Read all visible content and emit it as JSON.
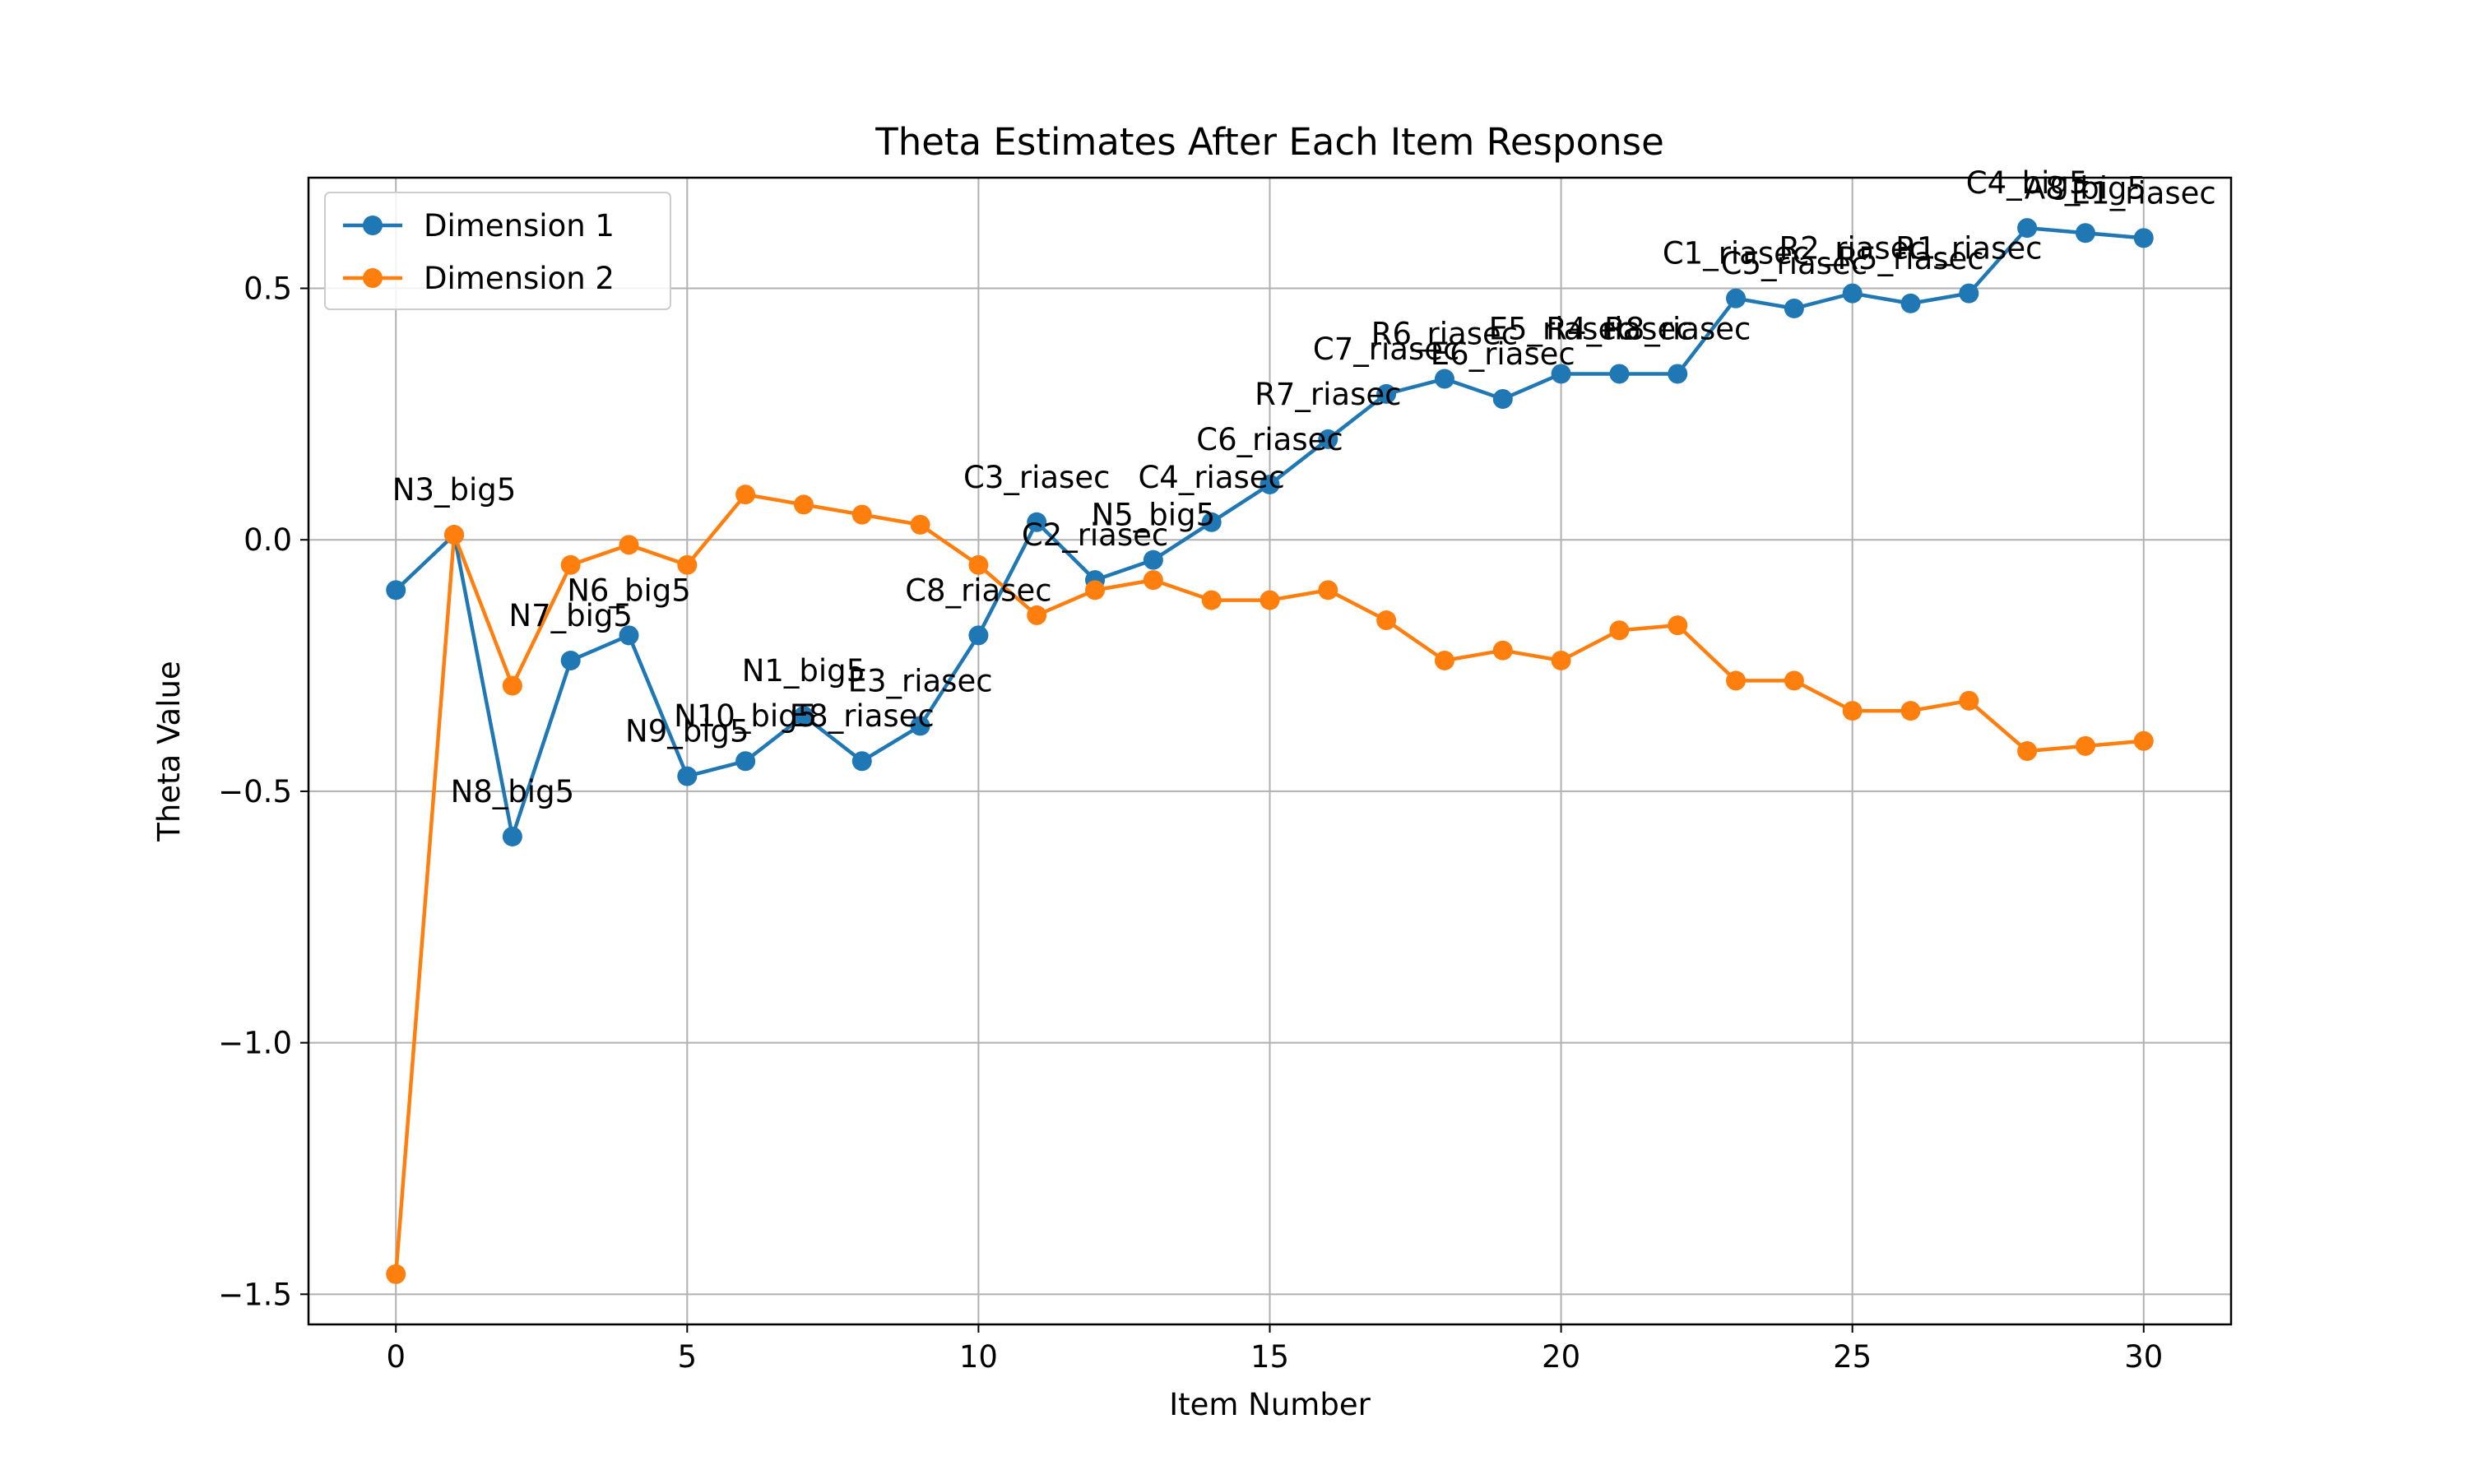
{
  "chart_data": {
    "type": "line",
    "title": "Theta Estimates After Each Item Response",
    "xlabel": "Item Number",
    "ylabel": "Theta Value",
    "xlim": [
      -1.5,
      31.5
    ],
    "ylim": [
      -1.56,
      0.72
    ],
    "xticks": [
      0,
      5,
      10,
      15,
      20,
      25,
      30
    ],
    "xtick_labels": [
      "0",
      "5",
      "10",
      "15",
      "20",
      "25",
      "30"
    ],
    "yticks": [
      0.5,
      0.0,
      -0.5,
      -1.0,
      -1.5
    ],
    "ytick_labels": [
      "0.5",
      "0.0",
      "−0.5",
      "−1.0",
      "−1.5"
    ],
    "grid": true,
    "legend_position": "top-left",
    "x": [
      0,
      1,
      2,
      3,
      4,
      5,
      6,
      7,
      8,
      9,
      10,
      11,
      12,
      13,
      14,
      15,
      16,
      17,
      18,
      19,
      20,
      21,
      22,
      23,
      24,
      25,
      26,
      27,
      28,
      29,
      30
    ],
    "series": [
      {
        "name": "Dimension 1",
        "color": "#1f77b4",
        "values": [
          -0.1,
          0.01,
          -0.59,
          -0.24,
          -0.19,
          -0.47,
          -0.44,
          -0.35,
          -0.44,
          -0.37,
          -0.19,
          0.035,
          -0.08,
          -0.04,
          0.035,
          0.11,
          0.2,
          0.29,
          0.32,
          0.28,
          0.33,
          0.33,
          0.33,
          0.48,
          0.46,
          0.49,
          0.47,
          0.49,
          0.62,
          0.61,
          0.6
        ]
      },
      {
        "name": "Dimension 2",
        "color": "#ff7f0e",
        "values": [
          -1.46,
          0.01,
          -0.29,
          -0.05,
          -0.01,
          -0.05,
          0.09,
          0.07,
          0.05,
          0.03,
          -0.05,
          -0.15,
          -0.1,
          -0.08,
          -0.12,
          -0.12,
          -0.1,
          -0.16,
          -0.24,
          -0.22,
          -0.24,
          -0.18,
          -0.17,
          -0.28,
          -0.28,
          -0.34,
          -0.34,
          -0.32,
          -0.42,
          -0.41,
          -0.4
        ]
      }
    ],
    "annotations": [
      {
        "text": "N3_big5",
        "x": 1,
        "y": 0.01
      },
      {
        "text": "N8_big5",
        "x": 2,
        "y": -0.59
      },
      {
        "text": "N7_big5",
        "x": 3,
        "y": -0.24
      },
      {
        "text": "N6_big5",
        "x": 4,
        "y": -0.19
      },
      {
        "text": "N9_big5",
        "x": 5,
        "y": -0.47
      },
      {
        "text": "N10_big5",
        "x": 6,
        "y": -0.44
      },
      {
        "text": "N1_big5",
        "x": 7,
        "y": -0.35
      },
      {
        "text": "E8_riasec",
        "x": 8,
        "y": -0.44
      },
      {
        "text": "E3_riasec",
        "x": 9,
        "y": -0.37
      },
      {
        "text": "C8_riasec",
        "x": 10,
        "y": -0.19
      },
      {
        "text": "C3_riasec",
        "x": 11,
        "y": 0.035
      },
      {
        "text": "C2_riasec",
        "x": 12,
        "y": -0.08
      },
      {
        "text": "N5_big5",
        "x": 13,
        "y": -0.04
      },
      {
        "text": "C4_riasec",
        "x": 14,
        "y": 0.035
      },
      {
        "text": "C6_riasec",
        "x": 15,
        "y": 0.11
      },
      {
        "text": "R7_riasec",
        "x": 16,
        "y": 0.2
      },
      {
        "text": "C7_riasec",
        "x": 17,
        "y": 0.29
      },
      {
        "text": "R6_riasec",
        "x": 18,
        "y": 0.32
      },
      {
        "text": "E6_riasec",
        "x": 19,
        "y": 0.28
      },
      {
        "text": "E5_riasec",
        "x": 20,
        "y": 0.33
      },
      {
        "text": "R4_riasec",
        "x": 21,
        "y": 0.33
      },
      {
        "text": "R8_riasec",
        "x": 22,
        "y": 0.33
      },
      {
        "text": "C1_riasec",
        "x": 23,
        "y": 0.48
      },
      {
        "text": "C5_riasec",
        "x": 24,
        "y": 0.46
      },
      {
        "text": "R2_riasec",
        "x": 25,
        "y": 0.49
      },
      {
        "text": "R5_riasec",
        "x": 26,
        "y": 0.47
      },
      {
        "text": "R1_riasec",
        "x": 27,
        "y": 0.49
      },
      {
        "text": "C4_big5",
        "x": 28,
        "y": 0.62
      },
      {
        "text": "A8_big5",
        "x": 29,
        "y": 0.61
      },
      {
        "text": "E1_riasec",
        "x": 30,
        "y": 0.6
      }
    ]
  }
}
